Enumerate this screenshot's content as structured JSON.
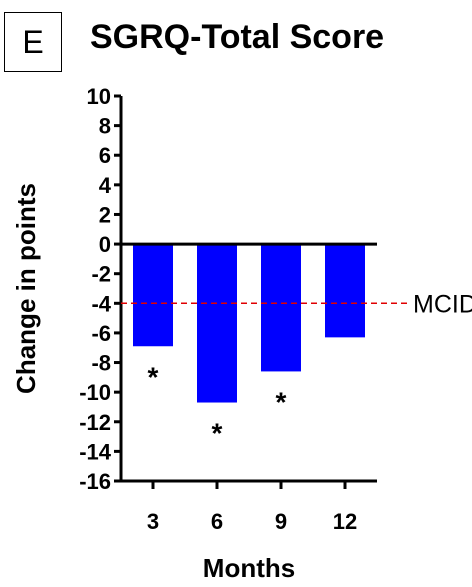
{
  "panel_label": "E",
  "chart_data": {
    "type": "bar",
    "title": "SGRQ-Total Score",
    "xlabel": "Months",
    "ylabel": "Change in points",
    "categories": [
      "3",
      "6",
      "9",
      "12"
    ],
    "values": [
      -6.9,
      -10.7,
      -8.6,
      -6.3
    ],
    "significance": [
      "*",
      "*",
      "*",
      ""
    ],
    "ylim": [
      -16,
      10
    ],
    "yticks": [
      "10",
      "8",
      "6",
      "4",
      "2",
      "0",
      "-2",
      "-4",
      "-6",
      "-8",
      "-10",
      "-12",
      "-14",
      "-16"
    ],
    "reference_line": {
      "value": -4,
      "label": "MCID",
      "color": "#e00000"
    },
    "bar_color": "#0000ff",
    "grid": false,
    "legend": "none"
  }
}
